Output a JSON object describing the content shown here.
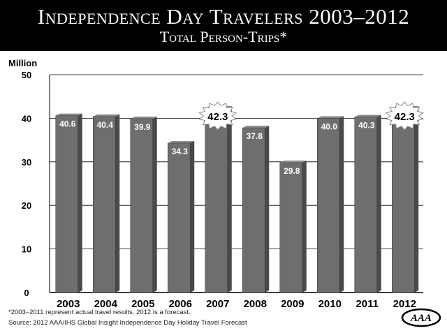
{
  "header": {
    "title": "Independence Day Travelers 2003–2012",
    "subtitle": "Total Person-Trips*"
  },
  "footer": {
    "footnote": "*2003–2011 represent actual travel results. 2012 is a forecast.",
    "source": "Source: 2012 AAA/IHS Global Insight Independence Day Holiday Travel Forecast",
    "logo_text": "AAA"
  },
  "colors": {
    "header_bg": "#000000",
    "bar_front": "#6e6e6e",
    "bar_side": "#4a4a4a",
    "bar_top": "#8c8c8c",
    "label_text": "#ffffff",
    "burst_fill": "#ffffff",
    "burst_stroke": "#888888"
  },
  "chart_data": {
    "type": "bar",
    "categories": [
      "2003",
      "2004",
      "2005",
      "2006",
      "2007",
      "2008",
      "2009",
      "2010",
      "2011",
      "2012"
    ],
    "values": [
      40.6,
      40.4,
      39.9,
      34.3,
      42.3,
      37.8,
      29.8,
      40.0,
      40.3,
      42.3
    ],
    "data_labels": [
      "40.6",
      "40.4",
      "39.9",
      "34.3",
      "42.3",
      "37.8",
      "29.8",
      "40.0",
      "40.3",
      "42.3"
    ],
    "highlighted": [
      "2007",
      "2012"
    ],
    "ylabel": "Million",
    "ylim": [
      0,
      50
    ],
    "yticks": [
      0,
      10,
      20,
      30,
      40,
      50
    ],
    "grid": true
  }
}
